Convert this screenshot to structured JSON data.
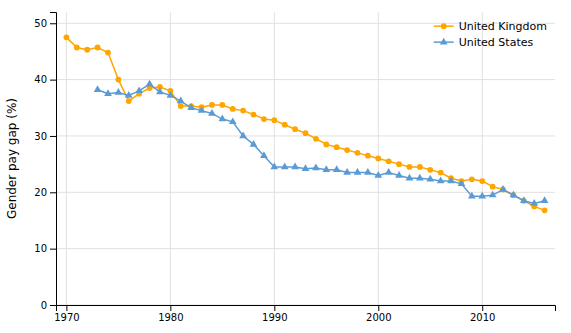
{
  "chart_data": {
    "type": "line",
    "ylabel": "Gender pay gap (%)",
    "x": [
      1970,
      1971,
      1972,
      1973,
      1974,
      1975,
      1976,
      1977,
      1978,
      1979,
      1980,
      1981,
      1982,
      1983,
      1984,
      1985,
      1986,
      1987,
      1988,
      1989,
      1990,
      1991,
      1992,
      1993,
      1994,
      1995,
      1996,
      1997,
      1998,
      1999,
      2000,
      2001,
      2002,
      2003,
      2004,
      2005,
      2006,
      2007,
      2008,
      2009,
      2010,
      2011,
      2012,
      2013,
      2014,
      2015,
      2016
    ],
    "series": [
      {
        "name": "United Kingdom",
        "color": "#FFA500",
        "marker": "circle",
        "values": [
          47.5,
          45.7,
          45.3,
          45.7,
          44.8,
          40.0,
          36.2,
          37.5,
          38.5,
          38.7,
          38.0,
          35.3,
          35.3,
          35.1,
          35.5,
          35.5,
          34.8,
          34.5,
          33.8,
          33.0,
          32.8,
          32.0,
          31.2,
          30.5,
          29.5,
          28.5,
          28.0,
          27.5,
          27.0,
          26.5,
          26.0,
          25.5,
          25.0,
          24.5,
          24.5,
          24.0,
          23.5,
          22.5,
          22.0,
          22.3,
          22.0,
          21.0,
          20.5,
          19.5,
          18.5,
          17.5,
          16.8
        ]
      },
      {
        "name": "United States",
        "color": "#5B9BD5",
        "marker": "triangle",
        "values": [
          null,
          null,
          null,
          38.2,
          37.5,
          37.7,
          37.2,
          38.0,
          39.2,
          37.8,
          37.2,
          36.2,
          35.0,
          34.5,
          34.0,
          33.0,
          32.5,
          30.0,
          28.5,
          26.5,
          24.5,
          24.5,
          24.5,
          24.2,
          24.3,
          24.0,
          24.0,
          23.5,
          23.5,
          23.5,
          23.0,
          23.5,
          23.0,
          22.5,
          22.5,
          22.3,
          22.0,
          22.0,
          21.5,
          19.3,
          19.3,
          19.5,
          20.5,
          19.5,
          18.5,
          18.0,
          18.5
        ]
      }
    ],
    "xlim": [
      1969,
      2017
    ],
    "ylim": [
      0,
      52
    ],
    "xticks": [
      1970,
      1980,
      1990,
      2000,
      2010
    ],
    "yticks": [
      0,
      10,
      20,
      30,
      40,
      50
    ],
    "grid": true,
    "legend": "upper right"
  }
}
